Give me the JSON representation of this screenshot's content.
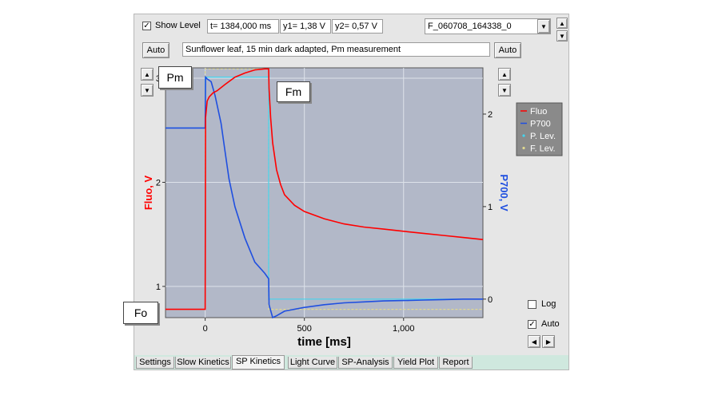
{
  "toolbar": {
    "show_level_label": "Show Level",
    "show_level_checked": true,
    "t_readout": "t= 1384,000 ms",
    "y1_readout": "y1= 1,38 V",
    "y2_readout": "y2= 0,57 V",
    "file_select_value": "F_060708_164338_0"
  },
  "comment": {
    "auto_left": "Auto",
    "text": "Sunflower leaf, 15 min dark adapted, Pm measurement",
    "auto_right": "Auto"
  },
  "callouts": {
    "pm": "Pm",
    "fm": "Fm",
    "fo": "Fo"
  },
  "options": {
    "log_label": "Log",
    "log_checked": false,
    "auto_label": "Auto",
    "auto_checked": true
  },
  "tabs": [
    {
      "label": "Settings",
      "active": false
    },
    {
      "label": "Slow Kinetics",
      "active": false
    },
    {
      "label": "SP Kinetics",
      "active": true
    },
    {
      "label": "Light Curve",
      "active": false
    },
    {
      "label": "SP-Analysis",
      "active": false
    },
    {
      "label": "Yield Plot",
      "active": false
    },
    {
      "label": "Report",
      "active": false
    }
  ],
  "colors": {
    "fluo": "#ff0000",
    "p700": "#1f4fe0",
    "p_lev": "#44d4ee",
    "f_lev": "#e0d890",
    "plot_bg": "#b2b8c8",
    "panel_bg": "#e6e6e6",
    "tabstrip": "#cfe8de"
  },
  "icons": {
    "check": "check-icon",
    "up": "arrow-up-icon",
    "down": "arrow-down-icon",
    "left": "arrow-left-icon",
    "right": "arrow-right-icon",
    "dropdown": "chevron-down-icon"
  },
  "chart_data": {
    "type": "line",
    "xlabel": "time [ms]",
    "ylabel_left": "Fluo, V",
    "ylabel_right": "P700, V",
    "xlim": [
      -200,
      1400
    ],
    "ylim_left": [
      0.7,
      3.1
    ],
    "ylim_right": [
      -0.2,
      2.5
    ],
    "x_ticks": [
      0,
      500,
      1000
    ],
    "x_tick_labels": [
      "0",
      "500",
      "1,000"
    ],
    "y_left_ticks": [
      1,
      2,
      3
    ],
    "y_left_tick_labels": [
      "1",
      "2",
      "3"
    ],
    "y_right_ticks": [
      0,
      1,
      2
    ],
    "y_right_tick_labels": [
      "0",
      "1",
      "2"
    ],
    "grid": true,
    "legend_position": "right",
    "series": [
      {
        "name": "Fluo",
        "axis": "left",
        "x": [
          -200,
          0,
          2,
          10,
          20,
          40,
          60,
          100,
          150,
          200,
          250,
          300,
          320,
          322,
          330,
          340,
          360,
          380,
          400,
          450,
          500,
          600,
          700,
          800,
          900,
          1000,
          1100,
          1200,
          1300,
          1400
        ],
        "values": [
          0.78,
          0.78,
          2.62,
          2.78,
          2.82,
          2.86,
          2.88,
          2.94,
          3.01,
          3.05,
          3.08,
          3.09,
          3.09,
          2.9,
          2.62,
          2.38,
          2.12,
          1.98,
          1.88,
          1.78,
          1.72,
          1.65,
          1.6,
          1.57,
          1.55,
          1.53,
          1.51,
          1.49,
          1.47,
          1.45
        ]
      },
      {
        "name": "P700",
        "axis": "right",
        "x": [
          -200,
          0,
          2,
          10,
          30,
          50,
          80,
          100,
          120,
          150,
          200,
          250,
          300,
          320,
          322,
          340,
          360,
          400,
          500,
          600,
          700,
          800,
          900,
          1000,
          1100,
          1200,
          1300,
          1400
        ],
        "values": [
          1.85,
          1.85,
          2.4,
          2.38,
          2.35,
          2.2,
          1.9,
          1.6,
          1.3,
          1.0,
          0.66,
          0.4,
          0.28,
          0.22,
          -0.06,
          -0.2,
          -0.18,
          -0.13,
          -0.09,
          -0.06,
          -0.04,
          -0.03,
          -0.02,
          -0.015,
          -0.01,
          -0.005,
          0.0,
          0.0
        ]
      },
      {
        "name": "P. Lev.",
        "axis": "right",
        "x": [
          -200,
          0,
          0,
          320,
          320,
          1400
        ],
        "values": [
          1.85,
          1.85,
          2.4,
          2.4,
          0.0,
          0.0
        ]
      },
      {
        "name": "F. Lev.",
        "axis": "left",
        "x": [
          -200,
          0,
          0,
          320,
          320,
          1400
        ],
        "values": [
          0.78,
          0.78,
          3.09,
          3.09,
          0.78,
          0.78
        ]
      }
    ]
  }
}
